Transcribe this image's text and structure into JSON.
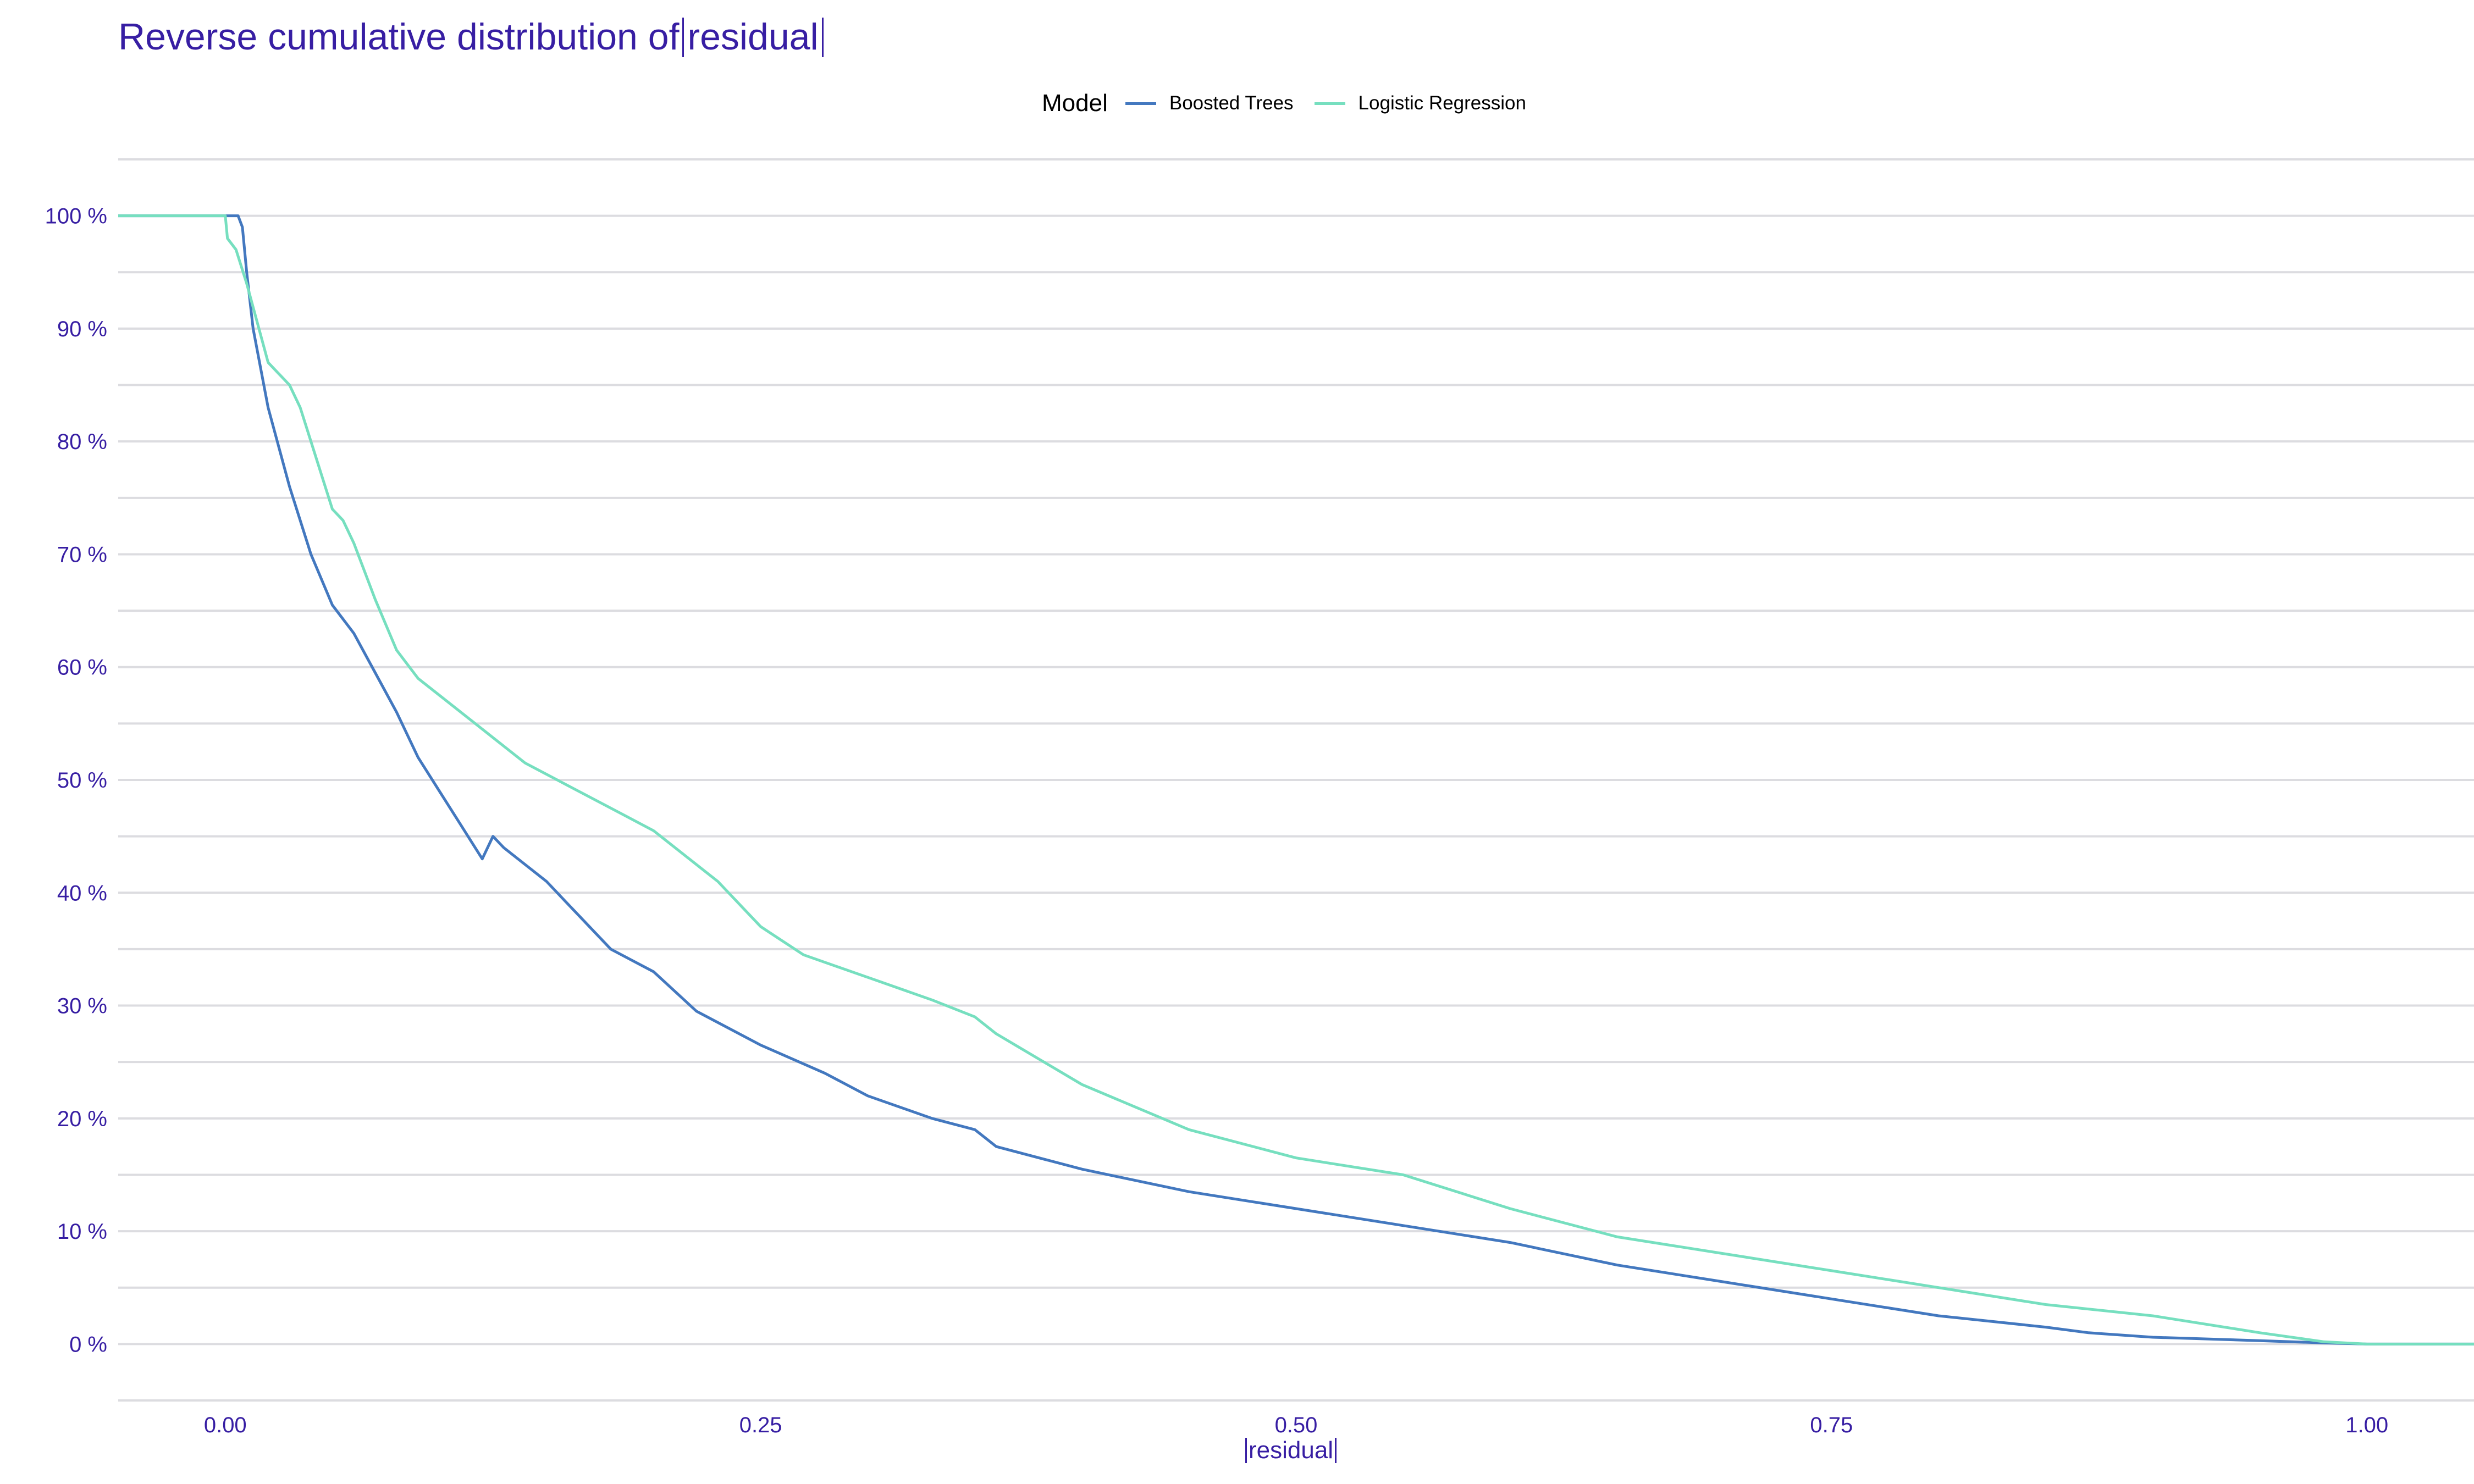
{
  "title": {
    "prefix": "Reverse cumulative distribution of",
    "abs_text": "residual"
  },
  "legend": {
    "title": "Model",
    "items": [
      {
        "label": "Boosted Trees",
        "color": "#4378bf"
      },
      {
        "label": "Logistic Regression",
        "color": "#76dfbf"
      }
    ]
  },
  "colors": {
    "text": "#371ea3",
    "grid": "#dcdce0"
  },
  "chart_data": {
    "type": "line",
    "title": "Reverse cumulative distribution of |residual|",
    "xlabel": "|residual|",
    "ylabel": "",
    "xlim": [
      -0.05,
      1.05
    ],
    "ylim": [
      -0.05,
      1.05
    ],
    "x_ticks": [
      0.0,
      0.25,
      0.5,
      0.75,
      1.0
    ],
    "x_tick_labels": [
      "0.00",
      "0.25",
      "0.50",
      "0.75",
      "1.00"
    ],
    "y_ticks": [
      0,
      0.1,
      0.2,
      0.3,
      0.4,
      0.5,
      0.6,
      0.7,
      0.8,
      0.9,
      1.0
    ],
    "y_tick_labels": [
      "0 %",
      "10 %",
      "20 %",
      "30 %",
      "40 %",
      "50 %",
      "60 %",
      "70 %",
      "80 %",
      "90 %",
      "100 %"
    ],
    "grid": true,
    "legend_position": "top",
    "series": [
      {
        "name": "Boosted Trees",
        "color": "#4378bf",
        "x": [
          -0.05,
          0.0,
          0.006,
          0.008,
          0.01,
          0.013,
          0.016,
          0.02,
          0.03,
          0.04,
          0.05,
          0.06,
          0.07,
          0.08,
          0.09,
          0.1,
          0.11,
          0.12,
          0.125,
          0.13,
          0.15,
          0.16,
          0.18,
          0.2,
          0.22,
          0.25,
          0.28,
          0.3,
          0.33,
          0.35,
          0.36,
          0.4,
          0.45,
          0.5,
          0.55,
          0.6,
          0.65,
          0.7,
          0.75,
          0.8,
          0.85,
          0.87,
          0.9,
          0.95,
          0.98,
          1.0,
          1.05
        ],
        "y": [
          1.0,
          1.0,
          1.0,
          0.99,
          0.95,
          0.9,
          0.87,
          0.83,
          0.76,
          0.7,
          0.655,
          0.63,
          0.595,
          0.56,
          0.52,
          0.49,
          0.46,
          0.43,
          0.45,
          0.44,
          0.41,
          0.39,
          0.35,
          0.33,
          0.295,
          0.265,
          0.24,
          0.22,
          0.2,
          0.19,
          0.175,
          0.155,
          0.135,
          0.12,
          0.105,
          0.09,
          0.07,
          0.055,
          0.04,
          0.025,
          0.015,
          0.01,
          0.006,
          0.003,
          0.001,
          0.0,
          0.0
        ]
      },
      {
        "name": "Logistic Regression",
        "color": "#76dfbf",
        "x": [
          -0.05,
          0.0,
          0.001,
          0.005,
          0.01,
          0.015,
          0.02,
          0.03,
          0.035,
          0.04,
          0.05,
          0.055,
          0.06,
          0.07,
          0.08,
          0.09,
          0.1,
          0.12,
          0.14,
          0.16,
          0.18,
          0.2,
          0.21,
          0.23,
          0.25,
          0.27,
          0.3,
          0.33,
          0.35,
          0.36,
          0.4,
          0.45,
          0.5,
          0.55,
          0.6,
          0.65,
          0.7,
          0.75,
          0.8,
          0.85,
          0.9,
          0.95,
          0.98,
          1.0,
          1.05
        ],
        "y": [
          1.0,
          1.0,
          0.98,
          0.97,
          0.94,
          0.905,
          0.87,
          0.85,
          0.83,
          0.8,
          0.74,
          0.73,
          0.71,
          0.66,
          0.615,
          0.59,
          0.575,
          0.545,
          0.515,
          0.495,
          0.475,
          0.455,
          0.44,
          0.41,
          0.37,
          0.345,
          0.325,
          0.305,
          0.29,
          0.275,
          0.23,
          0.19,
          0.165,
          0.15,
          0.12,
          0.095,
          0.08,
          0.065,
          0.05,
          0.035,
          0.025,
          0.01,
          0.002,
          0.0,
          0.0
        ]
      }
    ]
  }
}
